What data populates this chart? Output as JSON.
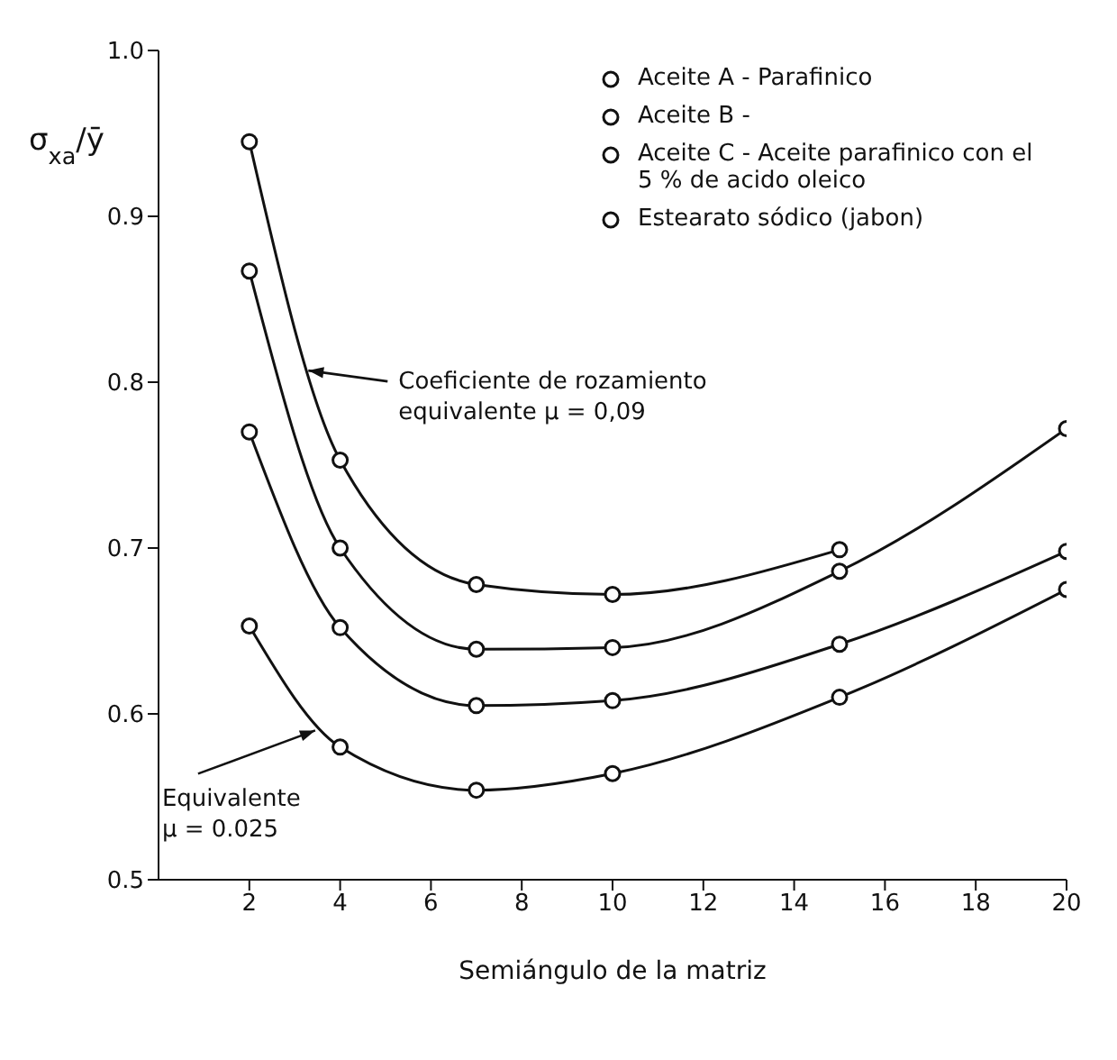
{
  "chart_data": {
    "type": "line",
    "xlabel": "Semiángulo de la matriz",
    "ylabel": "σ$_{xa}$/ȳ",
    "xlim": [
      0,
      20
    ],
    "xticks": [
      2,
      4,
      6,
      8,
      10,
      12,
      14,
      16,
      18,
      20
    ],
    "ylim": [
      0.5,
      1.0
    ],
    "yticks": [
      0.5,
      0.6,
      0.7,
      0.8,
      0.9,
      {
        "value": 1.0,
        "label": "1.0"
      }
    ],
    "legend": "top right",
    "marker": "circle",
    "line_style": "solid",
    "series": [
      {
        "name": "Aceite A - Parafinico",
        "color": "#111111",
        "x": [
          2,
          4,
          7,
          10,
          15
        ],
        "values": [
          0.945,
          0.753,
          0.678,
          0.672,
          0.699
        ]
      },
      {
        "name": "Aceite B -",
        "color": "#111111",
        "x": [
          2,
          4,
          7,
          10,
          15,
          20
        ],
        "values": [
          0.867,
          0.7,
          0.639,
          0.64,
          0.686,
          0.772
        ]
      },
      {
        "name": "Aceite C - Aceite parafinico con el 5 % de acido oleico",
        "color": "#111111",
        "x": [
          2,
          4,
          7,
          10,
          15,
          20
        ],
        "values": [
          0.77,
          0.652,
          0.605,
          0.608,
          0.642,
          0.698
        ]
      },
      {
        "name": "Estearato sódico (jabon)",
        "color": "#111111",
        "x": [
          2,
          4,
          7,
          10,
          15,
          20
        ],
        "values": [
          0.653,
          0.58,
          0.554,
          0.564,
          0.61,
          0.675
        ]
      }
    ],
    "annotations": [
      {
        "text": "Coeficiente de rozamiento\nequivalente μ = 0,09",
        "x": 3.3,
        "y": 0.807
      },
      {
        "text": "Equivalente\nμ = 0.025",
        "x": 3.45,
        "y": 0.59
      }
    ]
  }
}
